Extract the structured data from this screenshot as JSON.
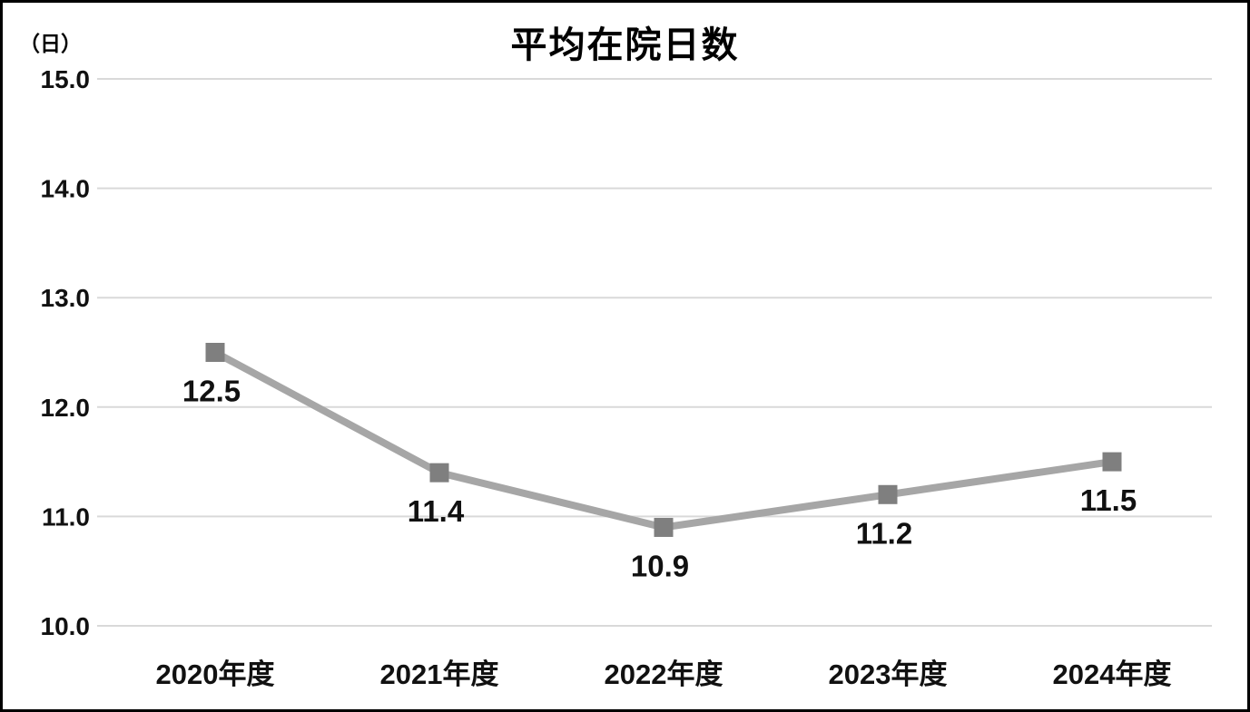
{
  "page": {
    "background_color": "#ffffff",
    "border_color": "#000000"
  },
  "chart_data": {
    "type": "line",
    "title": "平均在院日数",
    "unit_label": "（日）",
    "xlabel": "",
    "ylabel": "（日）",
    "categories": [
      "2020年度",
      "2021年度",
      "2022年度",
      "2023年度",
      "2024年度"
    ],
    "series": [
      {
        "name": "平均在院日数",
        "values": [
          12.5,
          11.4,
          10.9,
          11.2,
          11.5
        ]
      }
    ],
    "data_labels": [
      "12.5",
      "11.4",
      "10.9",
      "11.2",
      "11.5"
    ],
    "y_ticks": [
      "15.0",
      "14.0",
      "13.0",
      "12.0",
      "11.0",
      "10.0"
    ],
    "ylim": [
      10.0,
      15.0
    ],
    "grid": true,
    "legend_position": "none",
    "marker_shape": "square",
    "line_color": "#a6a6a6",
    "marker_color": "#7f7f7f",
    "gridline_color": "#d9d9d9",
    "text_color": "#111111"
  }
}
